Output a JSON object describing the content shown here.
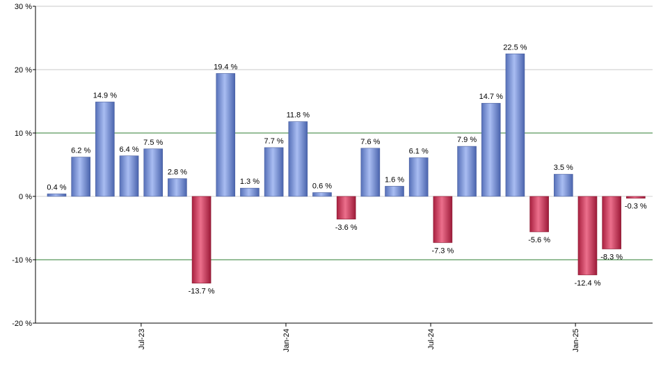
{
  "chart_data": {
    "type": "bar",
    "title": "",
    "xlabel": "",
    "ylabel": "",
    "ylim": [
      -20,
      30
    ],
    "yticks": [
      -20,
      -10,
      0,
      10,
      20,
      30
    ],
    "ytick_labels": [
      "-20 %",
      "-10 %",
      "0 %",
      "10 %",
      "20 %",
      "30 %"
    ],
    "xticks": [
      {
        "index": 3.5,
        "label": "Jul-23"
      },
      {
        "index": 9.5,
        "label": "Jan-24"
      },
      {
        "index": 15.5,
        "label": "Jul-24"
      },
      {
        "index": 21.5,
        "label": "Jan-25"
      }
    ],
    "values": [
      0.4,
      6.2,
      14.9,
      6.4,
      7.5,
      2.8,
      -13.7,
      19.4,
      1.3,
      7.7,
      11.8,
      0.6,
      -3.6,
      7.6,
      1.6,
      6.1,
      -7.3,
      7.9,
      14.7,
      22.5,
      -5.6,
      3.5,
      -12.4,
      -8.3,
      -0.3
    ],
    "labels": [
      "0.4 %",
      "6.2 %",
      "14.9 %",
      "6.4 %",
      "7.5 %",
      "2.8 %",
      "-13.7 %",
      "19.4 %",
      "1.3 %",
      "7.7 %",
      "11.8 %",
      "0.6 %",
      "-3.6 %",
      "7.6 %",
      "1.6 %",
      "6.1 %",
      "-7.3 %",
      "7.9 %",
      "14.7 %",
      "22.5 %",
      "-5.6 %",
      "3.5 %",
      "-12.4 %",
      "-8.3 %",
      "-0.3 %"
    ],
    "grid": true,
    "highlight_lines": [
      10,
      -10
    ],
    "colors": {
      "positive": "#7f9be0",
      "negative": "#d03a5c",
      "grid": "#c8c8c8",
      "highlight": "#2e7d32",
      "axis": "#000000"
    }
  }
}
